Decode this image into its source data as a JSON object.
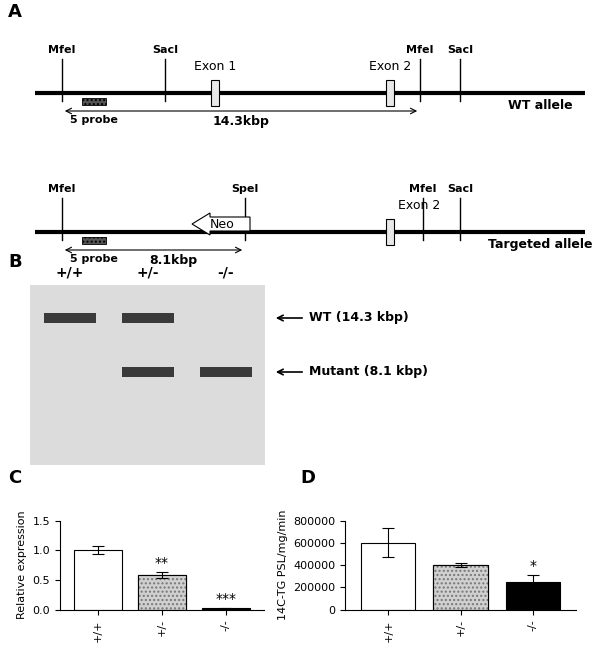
{
  "panel_labels": [
    "A",
    "B",
    "C",
    "D"
  ],
  "diagram": {
    "alleles": [
      {
        "name": "WT allele",
        "sites": [
          "MfeI",
          "SacI",
          "MfeI",
          "SacI"
        ],
        "exons": [
          "Exon 1",
          "Exon 2"
        ],
        "probe": "5 probe",
        "fragment": "14.3kbp"
      },
      {
        "name": "Targeted allele",
        "sites": [
          "MfeI",
          "SpeI",
          "MfeI",
          "SacI"
        ],
        "cassette": "Neo",
        "exons": [
          "Exon 2"
        ],
        "probe": "5 probe",
        "fragment": "8.1kbp"
      }
    ]
  },
  "blot": {
    "lanes": [
      "+/+",
      "+/-",
      "-/-"
    ],
    "bands": [
      {
        "label": "WT (14.3 kbp)",
        "lanes": [
          true,
          true,
          false
        ]
      },
      {
        "label": "Mutant (8.1 kbp)",
        "lanes": [
          false,
          true,
          true
        ]
      }
    ]
  },
  "chart_data": [
    {
      "type": "bar",
      "y_label": "Relative expression",
      "categories": [
        "+/+",
        "+/-",
        "-/-"
      ],
      "values": [
        1.0,
        0.58,
        0.02
      ],
      "errors": [
        0.07,
        0.05,
        0.005
      ],
      "colors": [
        "#ffffff",
        "#d0d0d0",
        "#000000"
      ],
      "ylim": [
        0,
        1.5
      ],
      "yticks": [
        {
          "value": 0,
          "label": "0.0"
        },
        {
          "value": 0.5,
          "label": "0.5"
        },
        {
          "value": 1.0,
          "label": "1.0"
        },
        {
          "value": 1.5,
          "label": "1.5"
        }
      ],
      "annotations": [
        {
          "category": "+/-",
          "text": "**"
        },
        {
          "category": "-/-",
          "text": "***"
        }
      ]
    },
    {
      "type": "bar",
      "y_label": "14C-TG PSL/mg/min",
      "categories": [
        "+/+",
        "+/-",
        "-/-"
      ],
      "values": [
        600000,
        400000,
        250000
      ],
      "errors": [
        130000,
        20000,
        65000
      ],
      "colors": [
        "#ffffff",
        "#d0d0d0",
        "#000000"
      ],
      "ylim": [
        0,
        800000
      ],
      "yticks": [
        0,
        200000,
        400000,
        600000,
        800000
      ],
      "annotations": [
        {
          "category": "-/-",
          "text": "*"
        }
      ]
    }
  ]
}
